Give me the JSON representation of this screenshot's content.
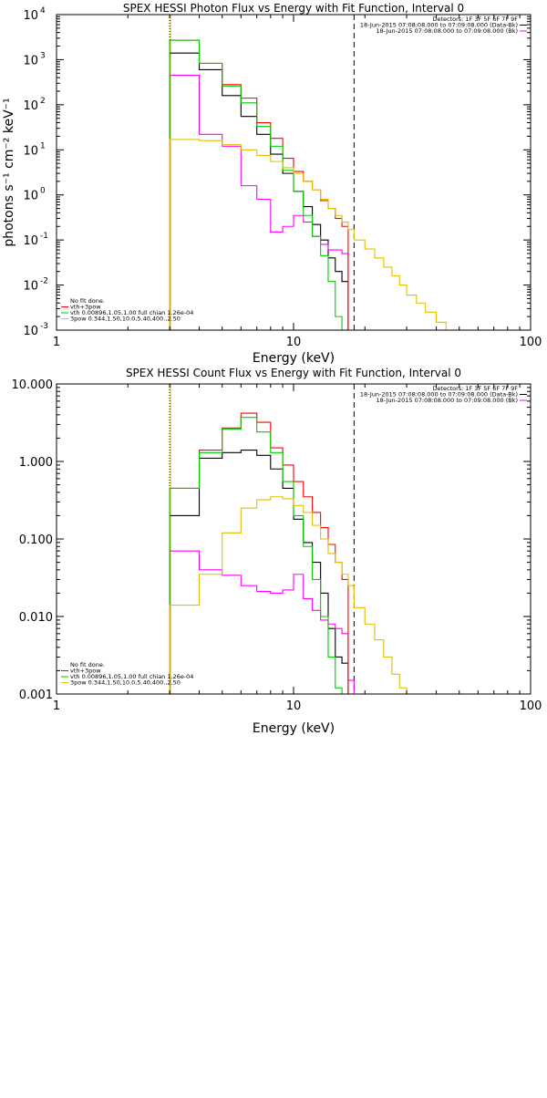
{
  "chart_data": [
    {
      "type": "line",
      "title": "SPEX HESSI Photon Flux vs Energy with Fit Function, Interval 0",
      "xlabel": "Energy (keV)",
      "ylabel": "photons s⁻¹ cm⁻² keV⁻¹",
      "xscale": "log",
      "yscale": "log",
      "xlim": [
        1,
        100
      ],
      "ylim": [
        0.001,
        10000
      ],
      "x_ticks": [
        "1",
        "10",
        "100"
      ],
      "y_ticks": [
        "10",
        "10",
        "10",
        "10",
        "10",
        "10",
        "10",
        "10"
      ],
      "y_tick_exponents": [
        "-3",
        "-2",
        "-1",
        "0",
        "1",
        "2",
        "3",
        "4"
      ],
      "y_tick_values": [
        0.001,
        0.01,
        0.1,
        1,
        10,
        100,
        1000,
        10000
      ],
      "vlines": [
        {
          "x": 3,
          "style": "dotted",
          "color": "#000000"
        },
        {
          "x": 3,
          "style": "solid",
          "color": "#e0c000"
        },
        {
          "x": 18,
          "style": "dashed",
          "color": "#000000"
        }
      ],
      "upper_legend": [
        {
          "text": "Detectors: 1F 3F 5F 6F 7F 9F",
          "color": ""
        },
        {
          "text": "18-Jun-2015 07:08:08.000 to 07:09:08.000 (Data-Bk)",
          "color": "#000000"
        },
        {
          "text": "18-Jun-2015 07:08:08.000 to 07:09:08.000 (Bk)",
          "color": "#ff00ff"
        }
      ],
      "lower_legend": [
        {
          "text": "No fit done.",
          "color": ""
        },
        {
          "text": "vth+3pow",
          "color": "#ff0000"
        },
        {
          "text": "vth 0.00896,1.05,1.00  full chian 1.26e-04",
          "color": "#00cc00"
        },
        {
          "text": "3pow 0.344,1.50,10.0,5.40,400.,2.50",
          "color": "#e0c000"
        }
      ],
      "series": [
        {
          "color": "#000000",
          "edges": [
            3,
            4,
            5,
            6,
            7,
            8,
            9,
            10,
            11,
            12,
            13,
            14,
            15,
            16,
            17,
            18
          ],
          "values": [
            1400,
            600,
            160,
            55,
            22,
            8,
            3,
            1.2,
            0.55,
            0.22,
            0.1,
            0.04,
            0.02,
            0.012,
            0.001
          ]
        },
        {
          "color": "#ff00ff",
          "edges": [
            3,
            4,
            5,
            6,
            7,
            8,
            9,
            10,
            11,
            12,
            13,
            14,
            15,
            16,
            17,
            18
          ],
          "values": [
            450,
            22,
            12,
            1.6,
            0.8,
            0.15,
            0.2,
            0.35,
            0.25,
            0.12,
            0.08,
            0.06,
            0.06,
            0.05,
            0.001
          ]
        },
        {
          "color": "#ff0000",
          "edges": [
            3,
            4,
            5,
            6,
            7,
            8,
            9,
            10,
            11,
            12,
            13,
            14,
            15,
            16,
            17,
            18
          ],
          "values": [
            2700,
            830,
            280,
            140,
            40,
            18,
            6.5,
            3.3,
            2,
            1.3,
            0.75,
            0.5,
            0.3,
            0.2,
            0.001
          ]
        },
        {
          "color": "#00cc00",
          "edges": [
            3,
            4,
            5,
            6,
            7,
            8,
            9,
            10,
            11,
            12,
            13,
            14,
            15,
            16,
            17,
            18
          ],
          "values": [
            2700,
            830,
            260,
            110,
            33,
            12,
            3.5,
            1.2,
            0.35,
            0.12,
            0.045,
            0.012,
            0.002,
            0.0008,
            0.0005
          ]
        },
        {
          "color": "#e0c000",
          "edges": [
            3,
            4,
            5,
            6,
            7,
            8,
            9,
            10,
            11,
            12,
            13,
            14,
            15,
            16,
            17,
            18,
            20,
            22,
            24,
            26,
            28,
            30,
            33,
            36,
            40,
            44
          ],
          "values": [
            17,
            16,
            13,
            10,
            7.5,
            5.5,
            4,
            3,
            2,
            1.3,
            0.8,
            0.5,
            0.35,
            0.25,
            0.17,
            0.1,
            0.063,
            0.04,
            0.025,
            0.016,
            0.01,
            0.006,
            0.004,
            0.0025,
            0.0015
          ]
        }
      ]
    },
    {
      "type": "line",
      "title": "SPEX HESSI Count Flux vs Energy with Fit Function, Interval 0",
      "xlabel": "Energy (keV)",
      "ylabel": "",
      "xscale": "log",
      "yscale": "log",
      "xlim": [
        1,
        100
      ],
      "ylim": [
        0.001,
        10
      ],
      "x_ticks": [
        "1",
        "10",
        "100"
      ],
      "y_ticks": [
        "0.001",
        "0.010",
        "0.100",
        "1.000",
        "10.000"
      ],
      "y_tick_values": [
        0.001,
        0.01,
        0.1,
        1,
        10
      ],
      "vlines": [
        {
          "x": 3,
          "style": "dotted",
          "color": "#000000"
        },
        {
          "x": 3,
          "style": "solid",
          "color": "#e0c000"
        },
        {
          "x": 18,
          "style": "dashed",
          "color": "#000000"
        }
      ],
      "upper_legend": [
        {
          "text": "Detectors: 1F 3F 5F 6F 7F 9F",
          "color": ""
        },
        {
          "text": "18-Jun-2015 07:08:08.000 to 07:09:08.000 (Data-Bk)",
          "color": "#000000"
        },
        {
          "text": "18-Jun-2015 07:08:08.000 to 07:09:08.000 (Bk)",
          "color": "#ff00ff"
        }
      ],
      "lower_legend": [
        {
          "text": "No fit done.",
          "color": ""
        },
        {
          "text": "vth+3pow",
          "color": "#ff0000"
        },
        {
          "text": "vth 0.00896,1.05,1.00  full chian 1.26e-04",
          "color": "#00cc00"
        },
        {
          "text": "3pow 0.344,1.50,10.0,5.40,400.,2.50",
          "color": "#e0c000"
        }
      ],
      "series": [
        {
          "color": "#000000",
          "edges": [
            3,
            4,
            5,
            6,
            7,
            8,
            9,
            10,
            11,
            12,
            13,
            14,
            15,
            16,
            17,
            18
          ],
          "values": [
            0.2,
            1.1,
            1.3,
            1.4,
            1.2,
            0.8,
            0.45,
            0.18,
            0.09,
            0.05,
            0.02,
            0.007,
            0.003,
            0.0025,
            0.001
          ]
        },
        {
          "color": "#ff00ff",
          "edges": [
            3,
            4,
            5,
            6,
            7,
            8,
            9,
            10,
            11,
            12,
            13,
            14,
            15,
            16,
            17,
            18
          ],
          "values": [
            0.07,
            0.04,
            0.034,
            0.025,
            0.021,
            0.02,
            0.022,
            0.035,
            0.017,
            0.012,
            0.009,
            0.008,
            0.007,
            0.006,
            0.0015
          ]
        },
        {
          "color": "#ff0000",
          "edges": [
            3,
            4,
            5,
            6,
            7,
            8,
            9,
            10,
            11,
            12,
            13,
            14,
            15,
            16,
            17,
            18
          ],
          "values": [
            0.45,
            1.4,
            2.7,
            4.2,
            3.2,
            1.5,
            0.9,
            0.55,
            0.35,
            0.22,
            0.14,
            0.085,
            0.05,
            0.03,
            0.001
          ]
        },
        {
          "color": "#00cc00",
          "edges": [
            3,
            4,
            5,
            6,
            7,
            8,
            9,
            10,
            11,
            12,
            13,
            14,
            15,
            16,
            17,
            18
          ],
          "values": [
            0.45,
            1.3,
            2.6,
            3.7,
            2.4,
            1.3,
            0.55,
            0.2,
            0.08,
            0.03,
            0.01,
            0.003,
            0.0012,
            0.001,
            0.001
          ]
        },
        {
          "color": "#e0c000",
          "edges": [
            3,
            4,
            5,
            6,
            7,
            8,
            9,
            10,
            11,
            12,
            13,
            14,
            15,
            16,
            17,
            18,
            20,
            22,
            24,
            26,
            28,
            30,
            33
          ],
          "values": [
            0.014,
            0.035,
            0.12,
            0.25,
            0.32,
            0.35,
            0.33,
            0.27,
            0.22,
            0.15,
            0.1,
            0.065,
            0.05,
            0.035,
            0.025,
            0.013,
            0.008,
            0.005,
            0.003,
            0.0018,
            0.0012,
            0.001
          ]
        }
      ]
    }
  ]
}
